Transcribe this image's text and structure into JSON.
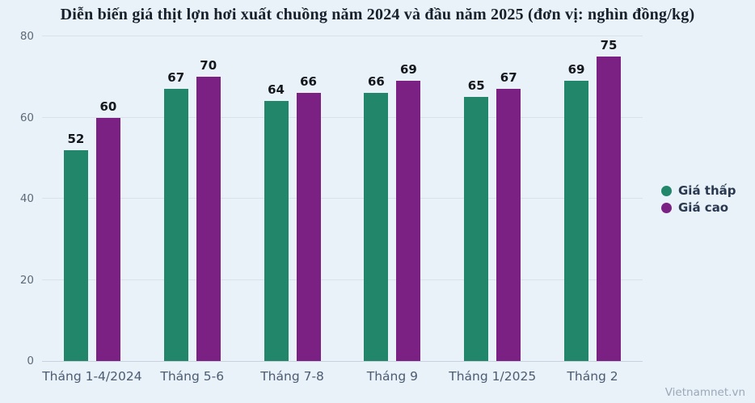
{
  "chart_data": {
    "type": "bar",
    "title": "Diễn biến giá thịt lợn hơi xuất chuồng năm 2024 và đầu năm 2025 (đơn vị: nghìn đồng/kg)",
    "categories": [
      "Tháng 1-4/2024",
      "Tháng 5-6",
      "Tháng 7-8",
      "Tháng 9",
      "Tháng 1/2025",
      "Tháng 2"
    ],
    "series": [
      {
        "name": "Giá thấp",
        "color": "#22876a",
        "values": [
          52,
          67,
          64,
          66,
          65,
          69
        ]
      },
      {
        "name": "Giá cao",
        "color": "#7c2184",
        "values": [
          60,
          70,
          66,
          69,
          67,
          75
        ]
      }
    ],
    "xlabel": "",
    "ylabel": "",
    "unit": "nghìn đồng/kg",
    "ylim": [
      0,
      80
    ],
    "yticks": [
      0,
      20,
      40,
      60,
      80
    ],
    "grid": true,
    "legend_position": "right"
  },
  "footer": {
    "watermark": "Vietnamnet.vn"
  },
  "colors": {
    "background": "#e9f1f9",
    "gridline": "#d9e1e9",
    "axis_line": "#c9d2dc",
    "series_low": "#22876a",
    "series_high": "#7c2184"
  }
}
